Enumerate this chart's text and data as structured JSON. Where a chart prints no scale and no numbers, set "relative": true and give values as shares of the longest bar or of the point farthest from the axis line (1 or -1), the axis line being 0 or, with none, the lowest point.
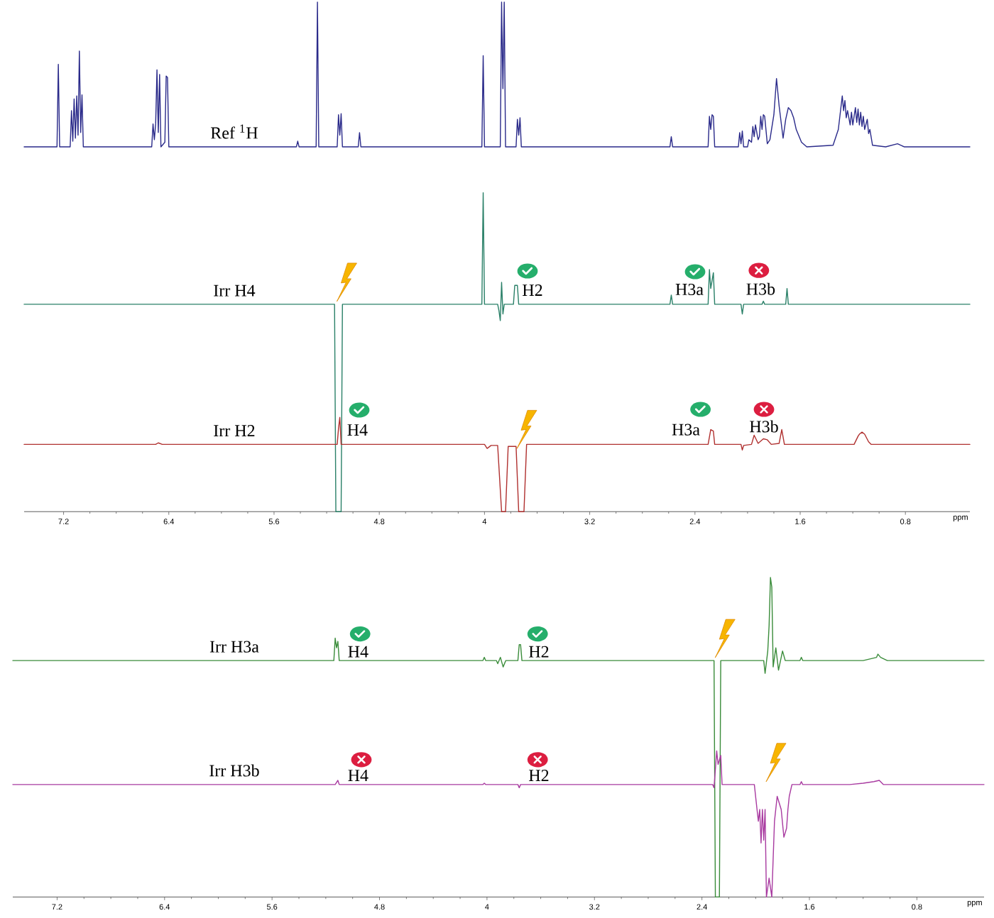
{
  "chart_data": [
    {
      "type": "line",
      "relative": true,
      "xlim": [
        7.5,
        0.31
      ],
      "xticks": [
        7.2,
        6.4,
        5.6,
        4.8,
        4,
        3.2,
        2.4,
        1.6,
        0.8
      ],
      "xlabel": "ppm",
      "tick_labels": "x",
      "annotations": [
        "H2",
        "H3a",
        "H3b",
        "H4",
        "H3a",
        "H3b"
      ],
      "series": [
        {
          "name": "Ref $^{1}$H",
          "color": "#2a2a8a",
          "x": [
            7.5,
            7.25,
            7.24,
            7.23,
            7.15,
            7.14,
            7.13,
            7.12,
            7.11,
            7.1,
            7.09,
            7.08,
            7.07,
            7.06,
            7.05,
            6.53,
            6.52,
            6.51,
            6.5,
            6.49,
            6.48,
            6.47,
            6.46,
            6.43,
            6.42,
            6.41,
            6.4,
            5.43,
            5.42,
            5.41,
            5.28,
            5.27,
            5.26,
            5.12,
            5.11,
            5.1,
            5.09,
            5.08,
            4.96,
            4.95,
            4.94,
            4.02,
            4.01,
            4.0,
            3.88,
            3.87,
            3.86,
            3.85,
            3.84,
            3.76,
            3.75,
            3.74,
            3.73,
            3.72,
            2.59,
            2.58,
            2.57,
            2.3,
            2.29,
            2.28,
            2.27,
            2.26,
            2.25,
            2.07,
            2.06,
            2.05,
            2.04,
            2.03,
            2.0,
            1.99,
            1.97,
            1.96,
            1.95,
            1.94,
            1.92,
            1.91,
            1.9,
            1.89,
            1.88,
            1.87,
            1.85,
            1.83,
            1.8,
            1.78,
            1.76,
            1.73,
            1.71,
            1.69,
            1.67,
            1.65,
            1.63,
            1.59,
            1.55,
            1.35,
            1.31,
            1.28,
            1.27,
            1.26,
            1.25,
            1.24,
            1.22,
            1.21,
            1.2,
            1.18,
            1.17,
            1.16,
            1.15,
            1.14,
            1.13,
            1.12,
            1.11,
            1.09,
            1.08,
            1.07,
            1.05,
            0.95,
            0.86,
            0.81,
            0.31
          ],
          "values": [
            0.716,
            0.716,
            0.878,
            0.716,
            0.716,
            0.787,
            0.727,
            0.81,
            0.733,
            0.816,
            0.739,
            0.904,
            0.744,
            0.818,
            0.716,
            0.716,
            0.761,
            0.73,
            0.761,
            0.867,
            0.744,
            0.858,
            0.716,
            0.725,
            0.855,
            0.852,
            0.716,
            0.716,
            0.727,
            0.716,
            0.716,
            1,
            0.716,
            0.716,
            0.779,
            0.739,
            0.781,
            0.716,
            0.716,
            0.744,
            0.716,
            0.716,
            0.895,
            0.716,
            0.716,
            1,
            0.83,
            1,
            0.716,
            0.716,
            0.77,
            0.739,
            0.773,
            0.716,
            0.716,
            0.736,
            0.716,
            0.716,
            0.776,
            0.75,
            0.779,
            0.776,
            0.716,
            0.716,
            0.744,
            0.722,
            0.747,
            0.716,
            0.716,
            0.73,
            0.725,
            0.756,
            0.736,
            0.759,
            0.73,
            0.736,
            0.776,
            0.75,
            0.779,
            0.776,
            0.722,
            0.73,
            0.779,
            0.85,
            0.796,
            0.733,
            0.77,
            0.793,
            0.787,
            0.773,
            0.75,
            0.725,
            0.716,
            0.719,
            0.75,
            0.816,
            0.787,
            0.807,
            0.773,
            0.787,
            0.759,
            0.784,
            0.759,
            0.793,
            0.764,
            0.79,
            0.759,
            0.784,
            0.756,
            0.776,
            0.75,
            0.77,
            0.742,
            0.75,
            0.719,
            0.716,
            0.722,
            0.716,
            0.716
          ]
        },
        {
          "name": "Irr H4",
          "color": "#2a8068",
          "x": [
            7.5,
            5.14,
            5.13,
            5.09,
            5.08,
            4.02,
            4.01,
            4.0,
            3.9,
            3.89,
            3.88,
            3.87,
            3.86,
            3.85,
            3.78,
            3.77,
            3.75,
            3.74,
            2.59,
            2.58,
            2.57,
            2.3,
            2.29,
            2.28,
            2.26,
            2.25,
            2.05,
            2.04,
            2.03,
            1.89,
            1.88,
            1.87,
            1.71,
            1.7,
            1.69,
            0.31
          ],
          "values": [
            0.407,
            0.407,
            0,
            0,
            0.407,
            0.407,
            0.626,
            0.407,
            0.407,
            0.394,
            0.375,
            0.45,
            0.388,
            0.407,
            0.407,
            0.444,
            0.444,
            0.407,
            0.407,
            0.425,
            0.407,
            0.407,
            0.475,
            0.438,
            0.469,
            0.407,
            0.407,
            0.388,
            0.407,
            0.407,
            0.413,
            0.407,
            0.407,
            0.438,
            0.407,
            0.407
          ]
        },
        {
          "name": "Irr H2",
          "color": "#b0302f",
          "x": [
            7.5,
            6.5,
            6.48,
            6.45,
            5.12,
            5.11,
            5.1,
            5.09,
            4.0,
            3.98,
            3.95,
            3.9,
            3.87,
            3.84,
            3.82,
            3.76,
            3.74,
            3.7,
            3.68,
            2.3,
            2.28,
            2.26,
            2.25,
            2.05,
            2.04,
            2.03,
            1.97,
            1.95,
            1.92,
            1.88,
            1.85,
            1.82,
            1.76,
            1.74,
            1.72,
            1.19,
            1.16,
            1.15,
            1.13,
            1.11,
            1.08,
            1.06,
            0.31
          ],
          "values": [
            0.132,
            0.132,
            0.135,
            0.132,
            0.132,
            0.163,
            0.185,
            0.132,
            0.132,
            0.124,
            0.13,
            0.13,
            0,
            0,
            0.128,
            0.128,
            0,
            0,
            0.132,
            0.132,
            0.161,
            0.158,
            0.132,
            0.132,
            0.121,
            0.13,
            0.132,
            0.15,
            0.134,
            0.143,
            0.141,
            0.132,
            0.134,
            0.161,
            0.132,
            0.132,
            0.148,
            0.152,
            0.156,
            0.152,
            0.137,
            0.132,
            0.132
          ]
        }
      ]
    },
    {
      "type": "line",
      "relative": true,
      "xlim": [
        7.53,
        0.3
      ],
      "xticks": [
        7.2,
        6.4,
        5.6,
        4.8,
        4,
        3.2,
        2.4,
        1.6,
        0.8
      ],
      "xlabel": "ppm",
      "tick_labels": "x",
      "annotations": [
        "H4",
        "H2",
        "H4",
        "H2"
      ],
      "series": [
        {
          "name": "Irr H3a",
          "color": "#3a8c3a",
          "x": [
            7.53,
            5.14,
            5.13,
            5.12,
            5.11,
            5.1,
            4.03,
            4.02,
            4.01,
            3.93,
            3.92,
            3.9,
            3.88,
            3.86,
            3.77,
            3.76,
            3.75,
            3.74,
            2.31,
            2.3,
            2.27,
            2.26,
            1.94,
            1.93,
            1.91,
            1.9,
            1.89,
            1.88,
            1.87,
            1.85,
            1.83,
            1.8,
            1.78,
            1.73,
            1.67,
            1.66,
            1.65,
            1.2,
            1.1,
            1.09,
            1.07,
            1.02,
            0.3
          ],
          "values": [
            0.74,
            0.74,
            0.81,
            0.78,
            0.8,
            0.74,
            0.74,
            0.75,
            0.74,
            0.74,
            0.73,
            0.75,
            0.72,
            0.74,
            0.74,
            0.79,
            0.79,
            0.74,
            0.74,
            0,
            0,
            0.74,
            0.74,
            0.7,
            0.77,
            0.85,
            1,
            0.97,
            0.72,
            0.78,
            0.71,
            0.77,
            0.74,
            0.74,
            0.74,
            0.75,
            0.74,
            0.74,
            0.75,
            0.76,
            0.75,
            0.74,
            0.74
          ]
        },
        {
          "name": "Irr H3b",
          "color": "#a83aa0",
          "x": [
            7.53,
            5.13,
            5.11,
            5.1,
            4.03,
            4.02,
            4.01,
            3.77,
            3.76,
            3.75,
            2.32,
            2.31,
            2.29,
            2.28,
            2.26,
            2.25,
            2.01,
            1.99,
            1.98,
            1.97,
            1.96,
            1.95,
            1.94,
            1.93,
            1.92,
            1.9,
            1.88,
            1.86,
            1.84,
            1.81,
            1.79,
            1.77,
            1.76,
            1.75,
            1.73,
            1.67,
            1.66,
            1.65,
            1.3,
            1.2,
            1.12,
            1.08,
            1.05,
            0.3
          ],
          "values": [
            0.352,
            0.352,
            0.365,
            0.352,
            0.352,
            0.356,
            0.352,
            0.352,
            0.342,
            0.352,
            0.352,
            0.342,
            0.457,
            0.415,
            0.443,
            0.352,
            0.352,
            0.274,
            0.237,
            0.274,
            0.169,
            0.274,
            0.178,
            0.274,
            0,
            0.059,
            0,
            0.237,
            0.315,
            0.274,
            0.187,
            0.215,
            0.274,
            0.315,
            0.352,
            0.352,
            0.361,
            0.352,
            0.352,
            0.356,
            0.361,
            0.365,
            0.352,
            0.352
          ]
        }
      ]
    }
  ]
}
